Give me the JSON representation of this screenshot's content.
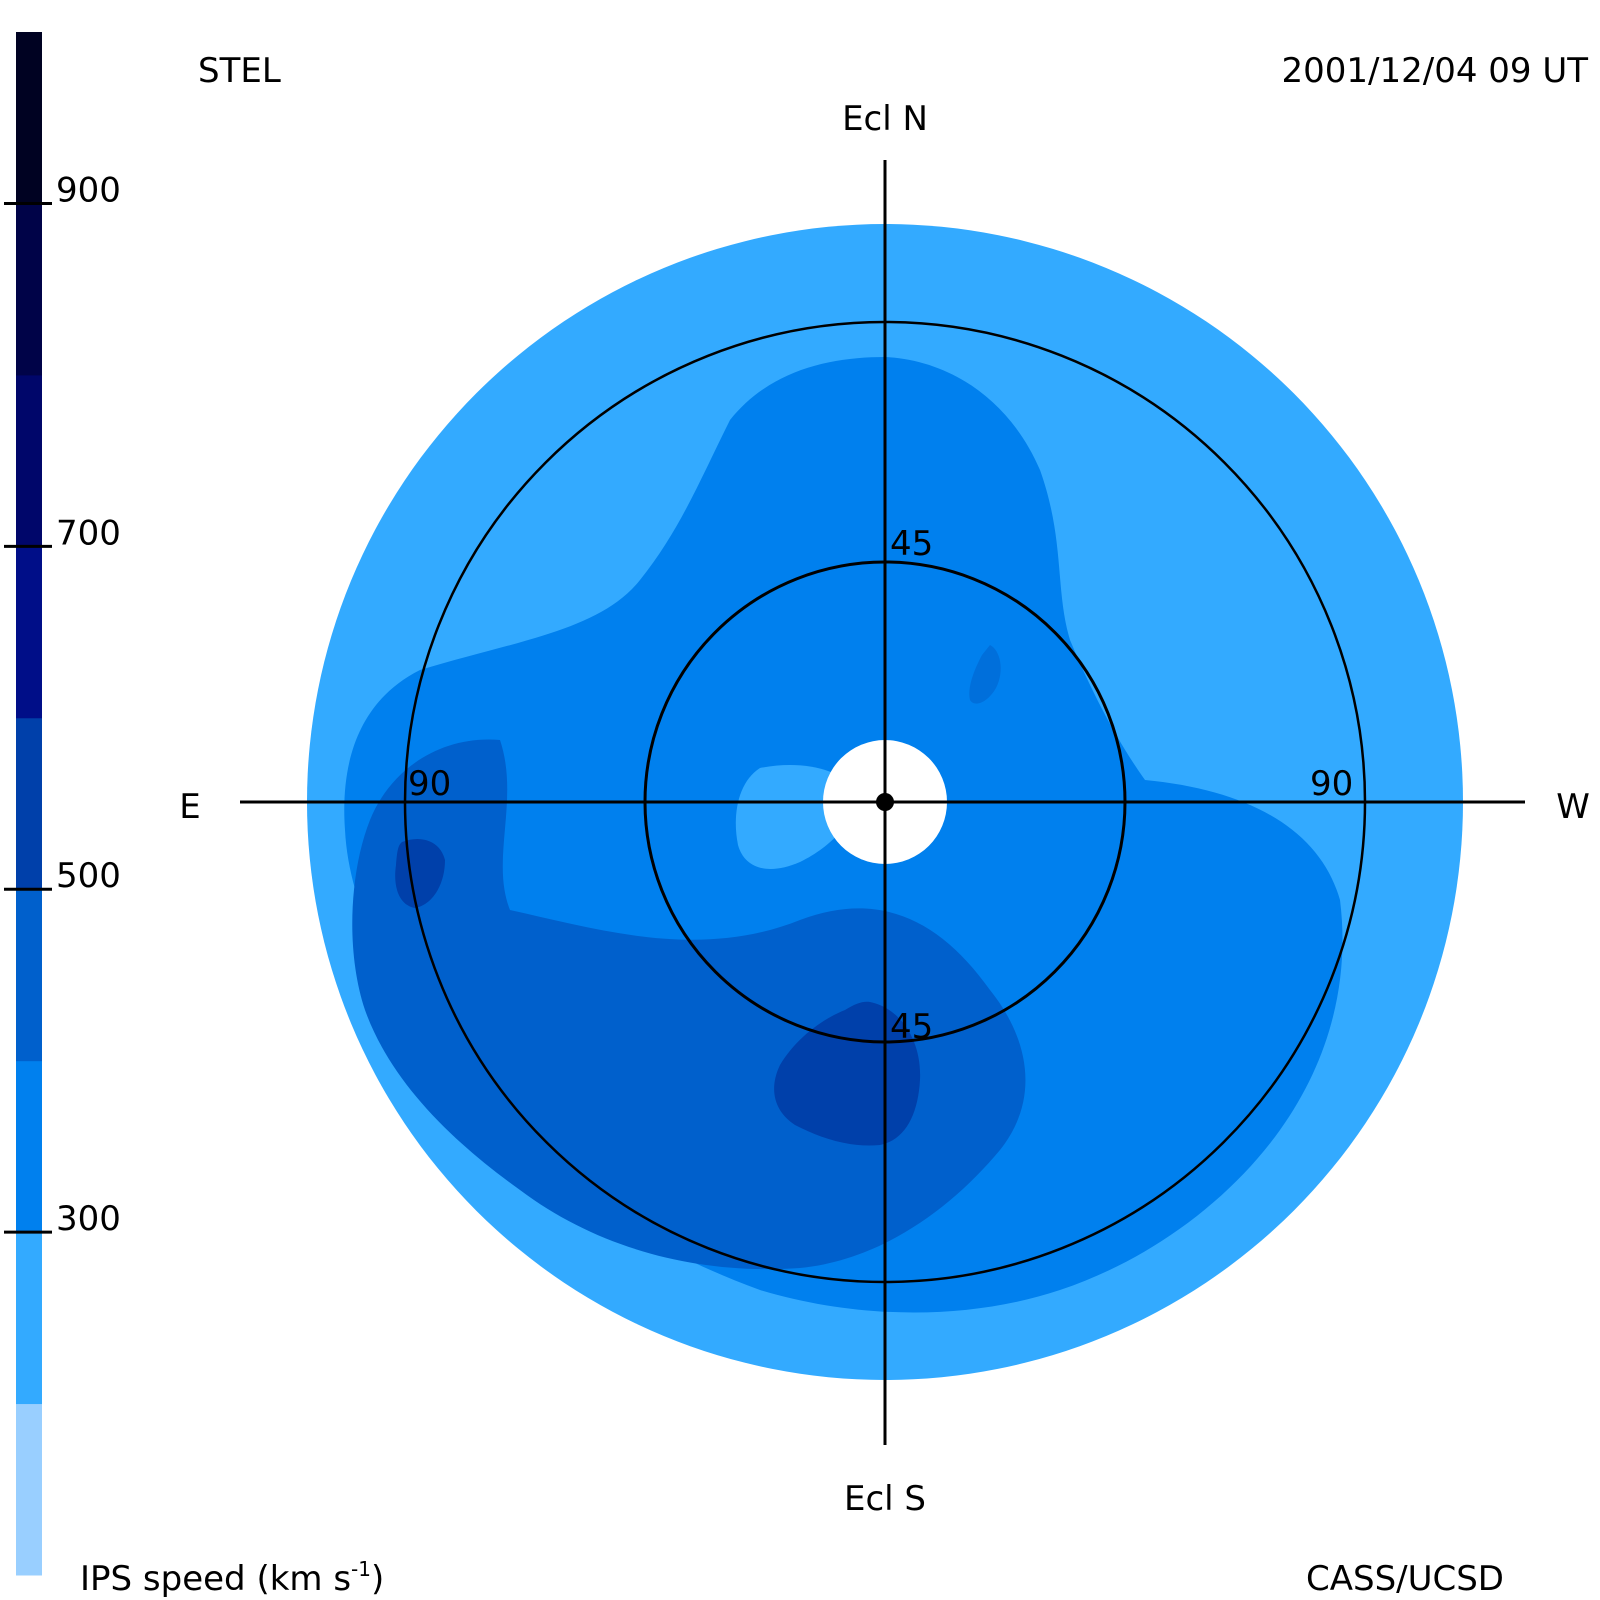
{
  "chart_data": {
    "type": "heatmap",
    "title_left": "STEL",
    "title_right": "2001/12/04 09 UT",
    "footer_left": "IPS speed (km s",
    "footer_left_sup": "-1",
    "footer_left_close": ")",
    "footer_right": "CASS/UCSD",
    "directions": {
      "north": "Ecl N",
      "south": "Ecl S",
      "east": "E",
      "west": "W"
    },
    "ring_labels": {
      "inner_top": "45",
      "inner_bottom": "45",
      "outer_left": "90",
      "outer_right": "90"
    },
    "rings_deg": [
      45,
      90
    ],
    "max_elongation_deg": 110,
    "colorbar": {
      "label": "IPS speed (km s-1)",
      "range": [
        100,
        1000
      ],
      "ticks": [
        {
          "value": 300,
          "label": "300"
        },
        {
          "value": 500,
          "label": "500"
        },
        {
          "value": 700,
          "label": "700"
        },
        {
          "value": 900,
          "label": "900"
        }
      ],
      "bins": [
        {
          "from": 100,
          "to": 200,
          "color": "#99cfff"
        },
        {
          "from": 200,
          "to": 300,
          "color": "#33aaff"
        },
        {
          "from": 300,
          "to": 400,
          "color": "#0080ee"
        },
        {
          "from": 400,
          "to": 500,
          "color": "#0060cc"
        },
        {
          "from": 500,
          "to": 600,
          "color": "#0040aa"
        },
        {
          "from": 600,
          "to": 700,
          "color": "#000e88"
        },
        {
          "from": 700,
          "to": 800,
          "color": "#00066a"
        },
        {
          "from": 800,
          "to": 900,
          "color": "#000348"
        },
        {
          "from": 900,
          "to": 1000,
          "color": "#000222"
        }
      ]
    },
    "regions": [
      {
        "name": "outer-ring-slow",
        "speed_bin": "200-300"
      },
      {
        "name": "central-moderate",
        "speed_bin": "300-400"
      },
      {
        "name": "southern-fast",
        "speed_bin": "400-500"
      },
      {
        "name": "south-core",
        "speed_bin": "500-600"
      },
      {
        "name": "east-patch",
        "speed_bin": "500-600"
      },
      {
        "name": "near-sun-slow",
        "speed_bin": "200-300"
      }
    ]
  }
}
